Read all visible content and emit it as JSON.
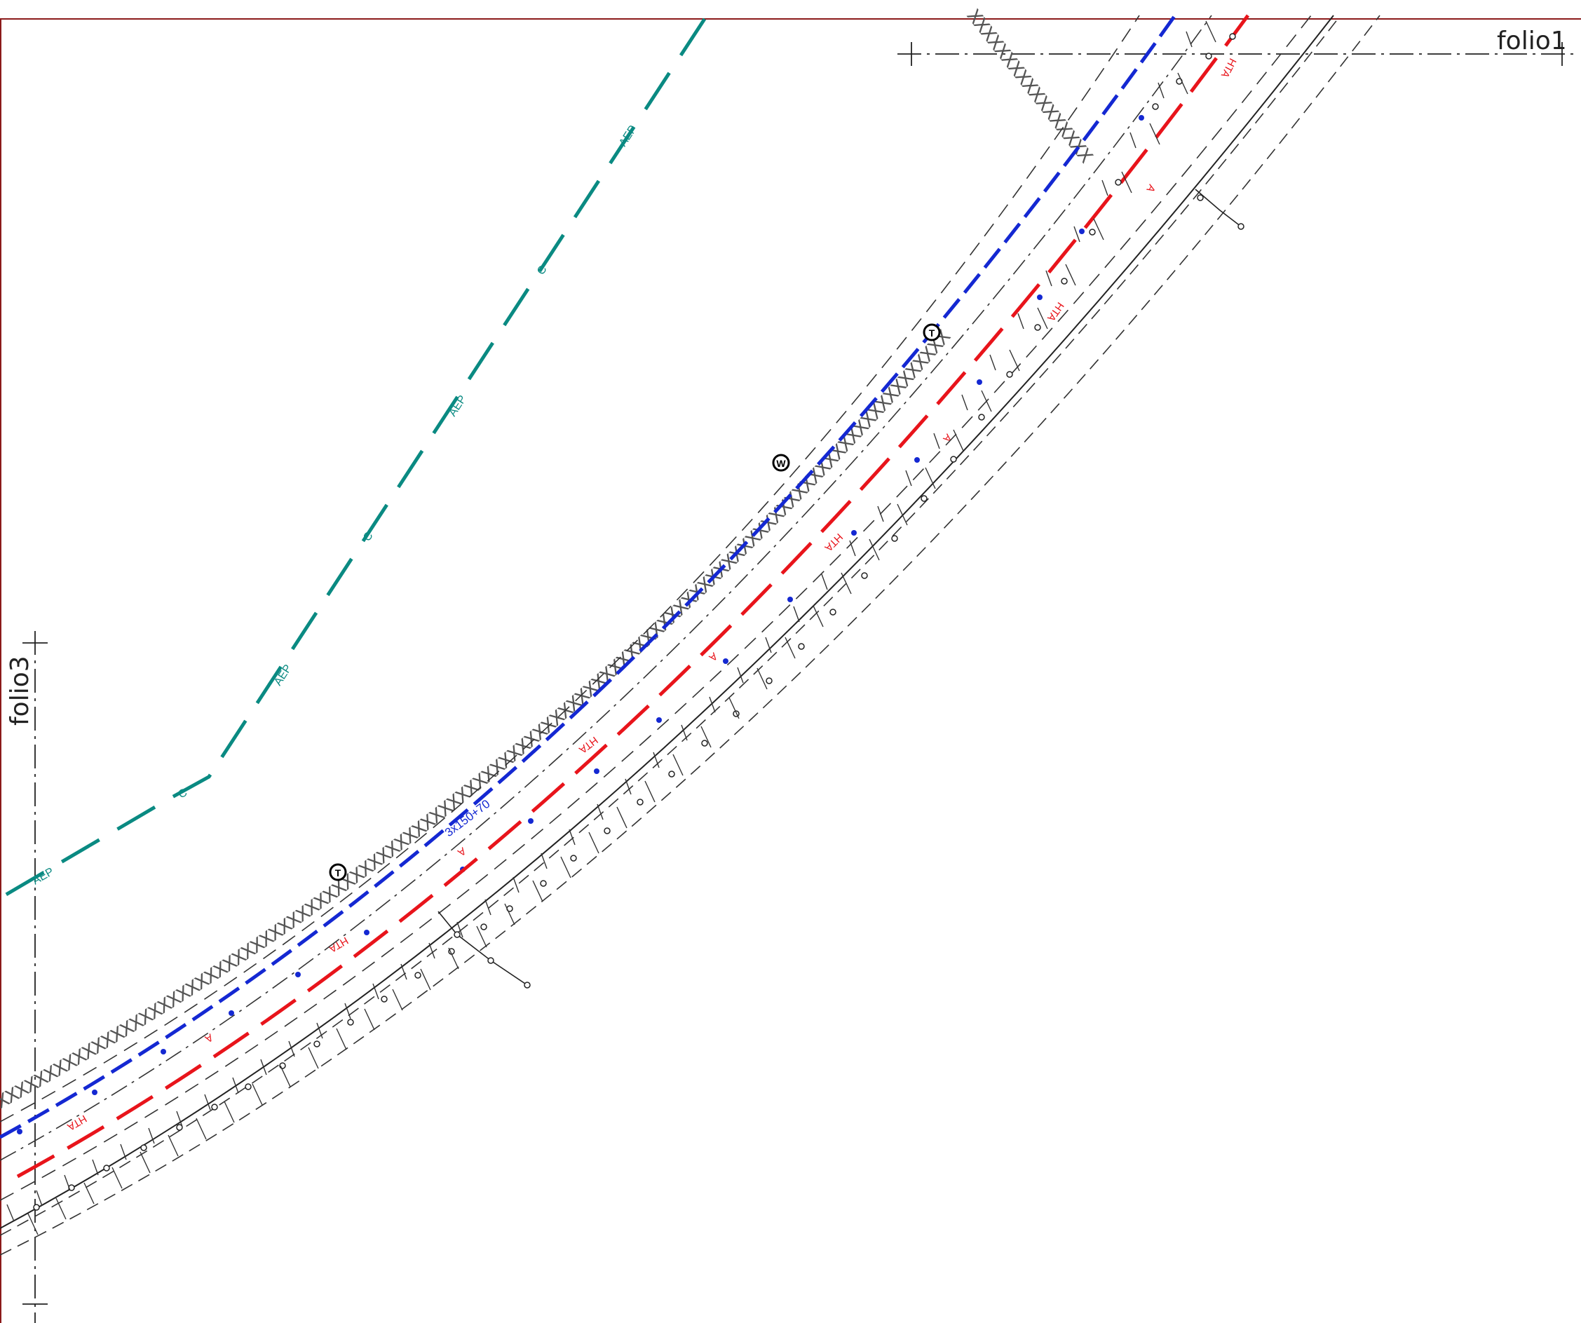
{
  "sheet": {
    "folio_top_right": "folio1",
    "folio_left": "folio3"
  },
  "network_labels": {
    "water_main": "AEP",
    "water_c": "C",
    "gas_a": "A",
    "gas_hta": "HTA",
    "power_cable": "3x150+70"
  },
  "symbols": {
    "manhole_w": "W",
    "manhole_t": "T",
    "manhole_t2": "T"
  },
  "colors": {
    "water": "#0a8a82",
    "gas": "#e8141b",
    "power": "#1428d2",
    "line": "#222222",
    "frame": "#8b1a1a"
  }
}
